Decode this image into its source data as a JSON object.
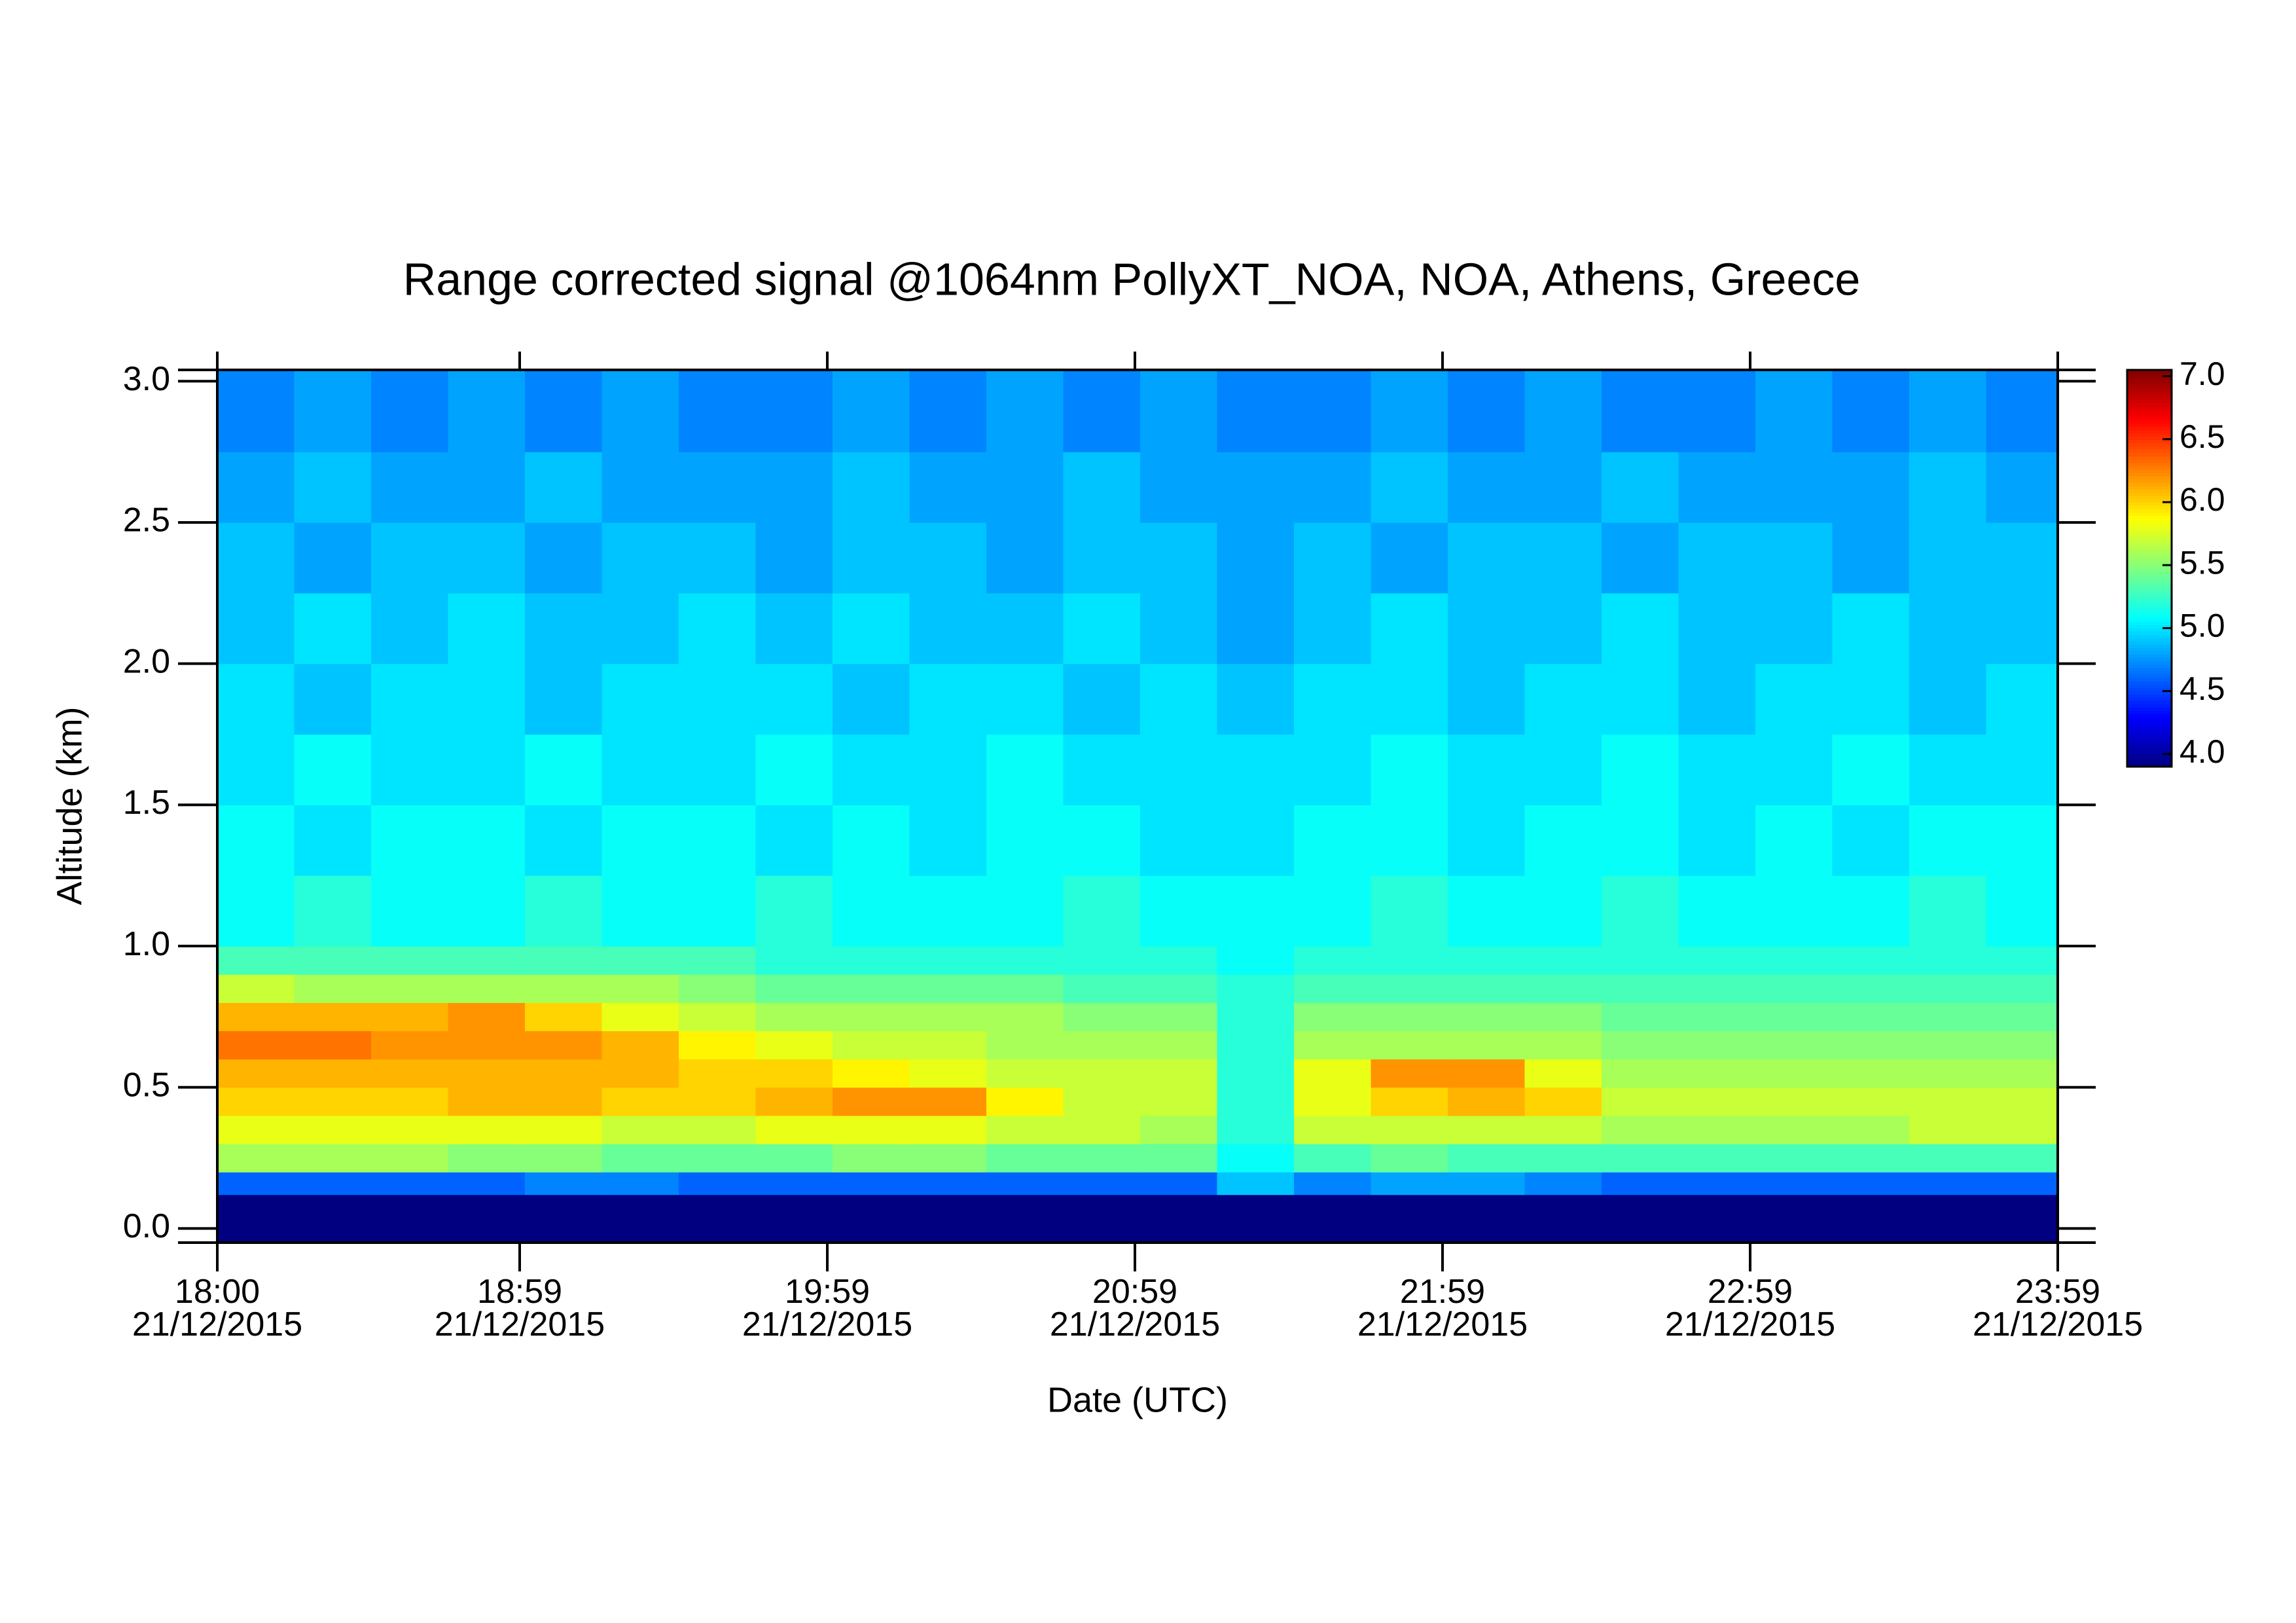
{
  "chart_data": {
    "type": "heatmap",
    "title": "Range corrected signal @1064nm  PollyXT_NOA, NOA, Athens, Greece",
    "x_label": "Date (UTC)",
    "y_label": "Altitude (km)",
    "xlim": [
      18,
      23.983
    ],
    "ylim": [
      -0.05,
      3.04
    ],
    "xticks": [
      {
        "value": 18,
        "label": "18:00\n21/12/2015"
      },
      {
        "value": 18.983,
        "label": "18:59\n21/12/2015"
      },
      {
        "value": 19.983,
        "label": "19:59\n21/12/2015"
      },
      {
        "value": 20.983,
        "label": "20:59\n21/12/2015"
      },
      {
        "value": 21.983,
        "label": "21:59\n21/12/2015"
      },
      {
        "value": 22.983,
        "label": "22:59\n21/12/2015"
      },
      {
        "value": 23.983,
        "label": "23:59\n21/12/2015"
      }
    ],
    "yticks": [
      {
        "value": 0,
        "label": "0.0"
      },
      0.5,
      {
        "value": 1,
        "label": "1.0"
      },
      1.5,
      {
        "value": 2,
        "label": "2.0"
      },
      2.5,
      {
        "value": 3,
        "label": "3.0"
      }
    ],
    "clim": [
      3.9,
      7.05
    ],
    "cticks": [
      {
        "value": 4,
        "label": "4.0"
      },
      4.5,
      {
        "value": 5,
        "label": "5.0"
      },
      5.5,
      {
        "value": 6,
        "label": "6.0"
      },
      6.5,
      {
        "value": 7,
        "label": "7.0"
      }
    ],
    "colormap": "jet",
    "x_edges": [
      18,
      18.25,
      18.5,
      18.75,
      19,
      19.25,
      19.5,
      19.75,
      20,
      20.25,
      20.5,
      20.75,
      21,
      21.25,
      21.5,
      21.75,
      22,
      22.25,
      22.5,
      22.75,
      23,
      23.25,
      23.5,
      23.75,
      23.983
    ],
    "y_edges": [
      -0.05,
      0.12,
      0.2,
      0.3,
      0.4,
      0.5,
      0.6,
      0.7,
      0.8,
      0.9,
      1.0,
      1.25,
      1.5,
      1.75,
      2.0,
      2.25,
      2.5,
      2.75,
      3.04
    ],
    "values": [
      [
        3.9,
        3.9,
        3.9,
        3.9,
        3.9,
        3.9,
        3.9,
        3.9,
        3.9,
        3.9,
        3.9,
        3.9,
        3.9,
        3.9,
        3.9,
        3.9,
        3.9,
        3.9,
        3.9,
        3.9,
        3.9,
        3.9,
        3.9,
        3.9
      ],
      [
        4.6,
        4.6,
        4.6,
        4.6,
        4.7,
        4.7,
        4.6,
        4.6,
        4.6,
        4.6,
        4.6,
        4.6,
        4.6,
        4.9,
        4.7,
        4.8,
        4.8,
        4.7,
        4.6,
        4.6,
        4.6,
        4.6,
        4.6,
        4.6
      ],
      [
        5.6,
        5.6,
        5.6,
        5.5,
        5.5,
        5.4,
        5.4,
        5.4,
        5.5,
        5.5,
        5.4,
        5.4,
        5.4,
        5.1,
        5.3,
        5.4,
        5.3,
        5.3,
        5.3,
        5.3,
        5.3,
        5.3,
        5.3,
        5.3
      ],
      [
        5.8,
        5.8,
        5.8,
        5.8,
        5.8,
        5.7,
        5.7,
        5.8,
        5.8,
        5.8,
        5.7,
        5.7,
        5.6,
        5.2,
        5.7,
        5.7,
        5.7,
        5.7,
        5.6,
        5.6,
        5.6,
        5.6,
        5.7,
        5.7
      ],
      [
        6.0,
        6.0,
        6.0,
        6.1,
        6.1,
        6.0,
        6.0,
        6.1,
        6.2,
        6.2,
        5.9,
        5.7,
        5.7,
        5.2,
        5.8,
        6.0,
        6.1,
        6.0,
        5.7,
        5.7,
        5.7,
        5.7,
        5.7,
        5.7
      ],
      [
        6.1,
        6.1,
        6.1,
        6.1,
        6.1,
        6.1,
        6.0,
        6.0,
        5.9,
        5.8,
        5.7,
        5.7,
        5.7,
        5.2,
        5.8,
        6.2,
        6.2,
        5.8,
        5.6,
        5.6,
        5.6,
        5.6,
        5.6,
        5.6
      ],
      [
        6.3,
        6.3,
        6.2,
        6.2,
        6.2,
        6.1,
        5.9,
        5.8,
        5.7,
        5.7,
        5.6,
        5.6,
        5.6,
        5.2,
        5.6,
        5.6,
        5.6,
        5.6,
        5.5,
        5.5,
        5.5,
        5.5,
        5.5,
        5.5
      ],
      [
        6.1,
        6.1,
        6.1,
        6.2,
        6.0,
        5.8,
        5.7,
        5.6,
        5.6,
        5.6,
        5.6,
        5.5,
        5.5,
        5.2,
        5.5,
        5.5,
        5.5,
        5.5,
        5.4,
        5.4,
        5.4,
        5.4,
        5.4,
        5.4
      ],
      [
        5.7,
        5.6,
        5.6,
        5.6,
        5.6,
        5.6,
        5.5,
        5.4,
        5.4,
        5.4,
        5.4,
        5.3,
        5.3,
        5.2,
        5.3,
        5.3,
        5.3,
        5.3,
        5.3,
        5.3,
        5.3,
        5.3,
        5.3,
        5.3
      ],
      [
        5.3,
        5.3,
        5.3,
        5.3,
        5.3,
        5.3,
        5.3,
        5.2,
        5.2,
        5.2,
        5.2,
        5.2,
        5.2,
        5.1,
        5.2,
        5.2,
        5.2,
        5.2,
        5.2,
        5.2,
        5.2,
        5.2,
        5.2,
        5.2
      ],
      [
        5.1,
        5.2,
        5.1,
        5.1,
        5.2,
        5.1,
        5.1,
        5.2,
        5.1,
        5.1,
        5.1,
        5.2,
        5.1,
        5.1,
        5.1,
        5.2,
        5.1,
        5.1,
        5.2,
        5.1,
        5.1,
        5.1,
        5.2,
        5.1
      ],
      [
        5.1,
        5.0,
        5.1,
        5.1,
        5.0,
        5.1,
        5.1,
        5.0,
        5.1,
        5.0,
        5.1,
        5.1,
        5.0,
        5.0,
        5.1,
        5.1,
        5.0,
        5.1,
        5.1,
        5.0,
        5.1,
        5.0,
        5.1,
        5.1
      ],
      [
        5.0,
        5.1,
        5.0,
        5.0,
        5.1,
        5.0,
        5.0,
        5.1,
        5.0,
        5.0,
        5.1,
        5.0,
        5.0,
        5.0,
        5.0,
        5.1,
        5.0,
        5.0,
        5.1,
        5.0,
        5.0,
        5.1,
        5.0,
        5.0
      ],
      [
        5.0,
        4.9,
        5.0,
        5.0,
        4.9,
        5.0,
        5.0,
        5.0,
        4.9,
        5.0,
        5.0,
        4.9,
        5.0,
        4.9,
        5.0,
        5.0,
        4.9,
        5.0,
        5.0,
        4.9,
        5.0,
        5.0,
        4.9,
        5.0
      ],
      [
        4.9,
        5.0,
        4.9,
        5.0,
        4.9,
        4.9,
        5.0,
        4.9,
        5.0,
        4.9,
        4.9,
        5.0,
        4.9,
        4.8,
        4.9,
        5.0,
        4.9,
        4.9,
        5.0,
        4.9,
        4.9,
        5.0,
        4.9,
        4.9
      ],
      [
        4.9,
        4.8,
        4.9,
        4.9,
        4.8,
        4.9,
        4.9,
        4.8,
        4.9,
        4.9,
        4.8,
        4.9,
        4.9,
        4.8,
        4.9,
        4.8,
        4.9,
        4.9,
        4.8,
        4.9,
        4.9,
        4.8,
        4.9,
        4.9
      ],
      [
        4.8,
        4.9,
        4.8,
        4.8,
        4.9,
        4.8,
        4.8,
        4.8,
        4.9,
        4.8,
        4.8,
        4.9,
        4.8,
        4.8,
        4.8,
        4.9,
        4.8,
        4.8,
        4.9,
        4.8,
        4.8,
        4.8,
        4.9,
        4.8
      ],
      [
        4.7,
        4.8,
        4.7,
        4.8,
        4.7,
        4.8,
        4.7,
        4.7,
        4.8,
        4.7,
        4.8,
        4.7,
        4.8,
        4.7,
        4.7,
        4.8,
        4.7,
        4.8,
        4.7,
        4.7,
        4.8,
        4.7,
        4.8,
        4.7
      ]
    ]
  }
}
